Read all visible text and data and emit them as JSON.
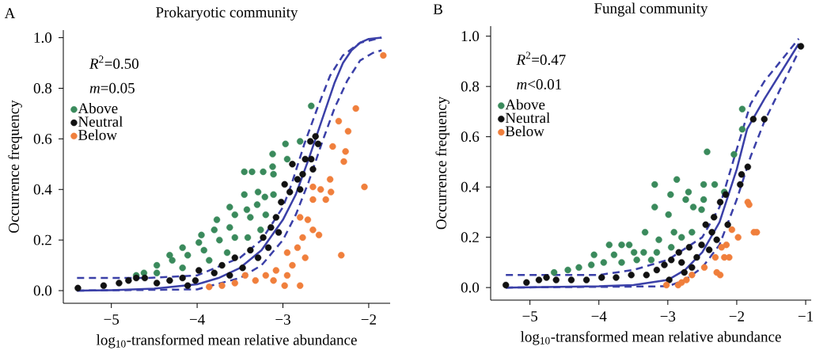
{
  "chart_data": [
    {
      "type": "scatter",
      "title": "Prokaryotic community",
      "xlabel": "log$_{10}$-transformed mean relative abundance",
      "ylabel": "Occurrence frequency",
      "annotations": [
        "A",
        "*R*$^{2}$=0.50",
        "*m*=0.05"
      ],
      "xlim": [
        -5.56,
        -1.75
      ],
      "ylim": [
        -0.05,
        1.03
      ],
      "xticks": [
        {
          "value": -5,
          "label": "−5"
        },
        {
          "value": -4,
          "label": "−4"
        },
        {
          "value": -3,
          "label": "−3"
        },
        {
          "value": -2,
          "label": "−2"
        }
      ],
      "yticks": [
        {
          "value": 0,
          "label": "0.0"
        },
        {
          "value": 0.2,
          "label": "0.2"
        },
        {
          "value": 0.4,
          "label": "0.4"
        },
        {
          "value": 0.6,
          "label": "0.6"
        },
        {
          "value": 0.8,
          "label": "0.8"
        },
        {
          "value": 1,
          "label": "1.0"
        }
      ],
      "legend": "top left",
      "marker": "circle",
      "series": [
        {
          "name": "Above",
          "color": "#3a8a5c",
          "x": [
            -2.67,
            -2.97,
            -2.8,
            -3.12,
            -2.95,
            -3.12,
            -3.45,
            -3.36,
            -3.23,
            -3.11,
            -3.29,
            -3.45,
            -3.21,
            -3.62,
            -3.42,
            -3.3,
            -3.11,
            -3.77,
            -3.56,
            -3.38,
            -3.95,
            -3.8,
            -3.62,
            -4.17,
            -3.98,
            -3.74,
            -3.56,
            -4.32,
            -4.11,
            -3.92,
            -4.47,
            -4.29,
            -4.62,
            -4.71,
            -4.47,
            -4.17,
            -3.86,
            -3.65,
            -3.41,
            -3.26,
            -3.2
          ],
          "values": [
            0.73,
            0.58,
            0.59,
            0.54,
            0.52,
            0.49,
            0.47,
            0.47,
            0.47,
            0.46,
            0.39,
            0.38,
            0.37,
            0.33,
            0.32,
            0.34,
            0.38,
            0.28,
            0.3,
            0.29,
            0.22,
            0.24,
            0.25,
            0.17,
            0.19,
            0.2,
            0.21,
            0.14,
            0.14,
            0.16,
            0.1,
            0.12,
            0.07,
            0.06,
            0.07,
            0.09,
            0.12,
            0.15,
            0.21,
            0.24,
            0.3
          ]
        },
        {
          "name": "Neutral",
          "color": "#111111",
          "x": [
            -5.39,
            -5.09,
            -4.91,
            -4.8,
            -4.71,
            -4.61,
            -4.47,
            -4.32,
            -4.17,
            -4.02,
            -4.11,
            -3.98,
            -3.8,
            -3.71,
            -3.62,
            -3.56,
            -3.47,
            -3.38,
            -3.29,
            -3.23,
            -3.17,
            -3.14,
            -3.08,
            -3.05,
            -3.02,
            -2.98,
            -2.92,
            -2.89,
            -2.83,
            -2.8,
            -2.74,
            -2.68,
            -2.67,
            -2.62,
            -2.59,
            -2.65,
            -2.77
          ],
          "values": [
            0.01,
            0.02,
            0.03,
            0.04,
            0.05,
            0.05,
            0.03,
            0.04,
            0.05,
            0.04,
            0.02,
            0.08,
            0.07,
            0.1,
            0.06,
            0.13,
            0.09,
            0.16,
            0.13,
            0.21,
            0.17,
            0.25,
            0.29,
            0.23,
            0.35,
            0.42,
            0.39,
            0.5,
            0.44,
            0.4,
            0.52,
            0.59,
            0.52,
            0.61,
            0.58,
            0.48,
            0.46
          ]
        },
        {
          "name": "Below",
          "color": "#f07f3c",
          "x": [
            -1.83,
            -2.15,
            -2.35,
            -2.24,
            -2.27,
            -2.42,
            -2.29,
            -2.05,
            -2.45,
            -2.65,
            -2.56,
            -2.44,
            -2.65,
            -2.5,
            -2.8,
            -2.71,
            -2.65,
            -2.58,
            -2.32,
            -2.77,
            -2.83,
            -2.95,
            -2.74,
            -2.89,
            -2.98,
            -2.8,
            -3.08,
            -3.2,
            -3.32,
            -3.44,
            -3.56,
            -3.71,
            -3.86,
            -3.11,
            -2.95
          ],
          "values": [
            0.93,
            0.72,
            0.67,
            0.63,
            0.55,
            0.57,
            0.51,
            0.41,
            0.44,
            0.41,
            0.4,
            0.39,
            0.36,
            0.36,
            0.29,
            0.28,
            0.24,
            0.22,
            0.14,
            0.21,
            0.17,
            0.15,
            0.13,
            0.1,
            0.02,
            0.02,
            0.08,
            0.06,
            0.04,
            0.06,
            0.03,
            0.02,
            0.015,
            0.04,
            0.06
          ]
        },
        {
          "type": "line",
          "color": "#3b40a8",
          "marker": "none",
          "line_style": "solid",
          "x": [
            -5.4,
            -5,
            -4.5,
            -4,
            -3.75,
            -3.5,
            -3.25,
            -3,
            -2.85,
            -2.7,
            -2.6,
            -2.5,
            -2.4,
            -2.3,
            -2.2,
            -2.1,
            -2,
            -1.85
          ],
          "values": [
            0,
            0.002,
            0.008,
            0.025,
            0.05,
            0.09,
            0.16,
            0.28,
            0.38,
            0.52,
            0.62,
            0.72,
            0.82,
            0.9,
            0.95,
            0.98,
            0.995,
            1
          ]
        },
        {
          "type": "line",
          "color": "#3b40a8",
          "marker": "none",
          "line_style": "dashed",
          "x": [
            -5.4,
            -4.6,
            -4,
            -3.5,
            -3.25,
            -3,
            -2.9,
            -2.75,
            -2.6,
            -2.45,
            -2.3,
            -2.1,
            -1.85
          ],
          "values": [
            0.05,
            0.05,
            0.06,
            0.13,
            0.2,
            0.33,
            0.42,
            0.58,
            0.72,
            0.85,
            0.93,
            0.98,
            1
          ]
        },
        {
          "type": "line",
          "color": "#3b40a8",
          "marker": "none",
          "line_style": "dashed",
          "x": [
            -5.4,
            -4,
            -3.5,
            -3.25,
            -3,
            -2.85,
            -2.7,
            -2.55,
            -2.4,
            -2.25,
            -2.1,
            -1.95,
            -1.85
          ],
          "values": [
            0,
            0.005,
            0.05,
            0.1,
            0.2,
            0.3,
            0.43,
            0.58,
            0.72,
            0.83,
            0.91,
            0.94,
            0.95
          ]
        }
      ]
    },
    {
      "type": "scatter",
      "title": "Fungal community",
      "xlabel": "log$_{10}$-transformed mean relative abundance",
      "ylabel": "Occurrence frequency",
      "annotations": [
        "B",
        "*R*$^{2}$=0.47",
        "*m*<0.01"
      ],
      "xlim": [
        -5.57,
        -0.92
      ],
      "ylim": [
        -0.05,
        1.04
      ],
      "xticks": [
        {
          "value": -5,
          "label": "−5"
        },
        {
          "value": -4,
          "label": "−4"
        },
        {
          "value": -3,
          "label": "−3"
        },
        {
          "value": -2,
          "label": "−2"
        },
        {
          "value": -1,
          "label": "−1"
        }
      ],
      "yticks": [
        {
          "value": 0,
          "label": "0.0"
        },
        {
          "value": 0.2,
          "label": "0.2"
        },
        {
          "value": 0.4,
          "label": "0.4"
        },
        {
          "value": 0.6,
          "label": "0.6"
        },
        {
          "value": 0.8,
          "label": "0.8"
        },
        {
          "value": 1,
          "label": "1.0"
        }
      ],
      "legend": "top left",
      "marker": "circle",
      "series": [
        {
          "name": "Above",
          "color": "#3a8a5c",
          "x": [
            -1.92,
            -1.92,
            -2.04,
            -2.43,
            -2.87,
            -3.19,
            -3.19,
            -2.96,
            -2.7,
            -2.48,
            -2.32,
            -2.74,
            -2.63,
            -2.51,
            -2.99,
            -2.48,
            -3.33,
            -3.13,
            -2.91,
            -2.8,
            -2.65,
            -3.85,
            -3.67,
            -3.56,
            -4.07,
            -3.78,
            -3.49,
            -3.35,
            -3.16,
            -2.95,
            -4.29,
            -4.11,
            -3.93,
            -3.67,
            -3.45,
            -3.24,
            -4.65,
            -4.45,
            -2.18
          ],
          "values": [
            0.71,
            0.63,
            0.53,
            0.54,
            0.43,
            0.41,
            0.32,
            0.37,
            0.38,
            0.41,
            0.41,
            0.35,
            0.32,
            0.31,
            0.29,
            0.35,
            0.22,
            0.19,
            0.22,
            0.2,
            0.22,
            0.17,
            0.17,
            0.17,
            0.13,
            0.13,
            0.14,
            0.14,
            0.14,
            0.16,
            0.08,
            0.09,
            0.1,
            0.1,
            0.11,
            0.11,
            0.06,
            0.07,
            0.38
          ]
        },
        {
          "name": "Neutral",
          "color": "#111111",
          "x": [
            -5.35,
            -5.05,
            -4.87,
            -4.76,
            -4.62,
            -4.4,
            -4.18,
            -3.96,
            -3.75,
            -3.53,
            -3.31,
            -3.16,
            -3.05,
            -2.95,
            -2.84,
            -2.8,
            -2.69,
            -2.65,
            -2.58,
            -2.51,
            -2.45,
            -2.4,
            -2.36,
            -2.33,
            -2.29,
            -2.24,
            -2.16,
            -2.13,
            -1.95,
            -1.93,
            -1.84,
            -1.76,
            -1.6,
            -1.07,
            -2.98,
            -2.76
          ],
          "values": [
            0.01,
            0.02,
            0.03,
            0.04,
            0.03,
            0.03,
            0.03,
            0.04,
            0.04,
            0.05,
            0.05,
            0.07,
            0.09,
            0.11,
            0.14,
            0.1,
            0.16,
            0.08,
            0.12,
            0.17,
            0.25,
            0.15,
            0.22,
            0.28,
            0.19,
            0.34,
            0.37,
            0.25,
            0.41,
            0.45,
            0.48,
            0.67,
            0.67,
            0.96,
            0.03,
            0.06
          ]
        },
        {
          "name": "Below",
          "color": "#f07f3c",
          "x": [
            -1.84,
            -1.82,
            -1.75,
            -1.71,
            -1.98,
            -2.07,
            -2.15,
            -2.22,
            -2.18,
            -2.11,
            -2.31,
            -2.29,
            -2.24,
            -2.47,
            -2.65,
            -2.8,
            -2.85,
            -3.02,
            -2.73
          ],
          "values": [
            0.34,
            0.33,
            0.22,
            0.22,
            0.2,
            0.23,
            0.17,
            0.16,
            0.12,
            0.12,
            0.12,
            0.06,
            0.05,
            0.08,
            0.05,
            0.02,
            0.01,
            0.01,
            0.03
          ]
        },
        {
          "type": "line",
          "color": "#3b40a8",
          "marker": "none",
          "line_style": "solid",
          "x": [
            -5.35,
            -4,
            -3.5,
            -3,
            -2.75,
            -2.5,
            -2.25,
            -2,
            -1.85,
            -1.6,
            -1.1
          ],
          "values": [
            0,
            0.005,
            0.01,
            0.03,
            0.07,
            0.14,
            0.26,
            0.47,
            0.63,
            0.75,
            0.97
          ]
        },
        {
          "type": "line",
          "color": "#3b40a8",
          "marker": "none",
          "line_style": "dashed",
          "x": [
            -5.35,
            -4.7,
            -4,
            -3.5,
            -3,
            -2.5,
            -2.25,
            -2,
            -1.8,
            -1.6,
            -1.1
          ],
          "values": [
            0.05,
            0.05,
            0.05,
            0.07,
            0.11,
            0.2,
            0.32,
            0.55,
            0.73,
            0.82,
            0.99
          ]
        },
        {
          "type": "line",
          "color": "#3b40a8",
          "marker": "none",
          "line_style": "dashed",
          "x": [
            -5.35,
            -3,
            -2.75,
            -2.5,
            -2.25,
            -2,
            -1.8,
            -1.6,
            -1.1
          ],
          "values": [
            0,
            0.005,
            0.03,
            0.08,
            0.17,
            0.35,
            0.52,
            0.66,
            0.94
          ]
        }
      ]
    }
  ]
}
